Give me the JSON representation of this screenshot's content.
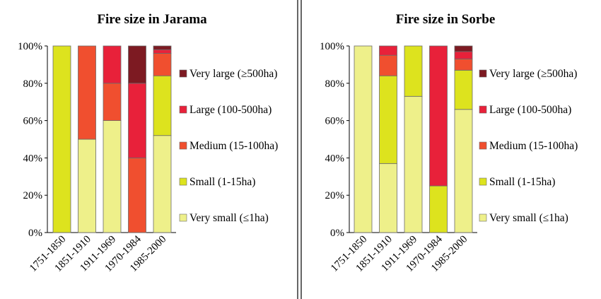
{
  "chart_data": [
    {
      "type": "bar",
      "stacked": true,
      "title": "Fire size in Jarama",
      "categories": [
        "1751-1850",
        "1851-1910",
        "1911-1969",
        "1970-1984",
        "1985-2000"
      ],
      "ylim": [
        0,
        100
      ],
      "yticks": [
        "0%",
        "20%",
        "40%",
        "60%",
        "80%",
        "100%"
      ],
      "legend_position": "right",
      "series": [
        {
          "name": "Very small (≤1ha)",
          "color": "#EEF08A",
          "values": [
            0,
            50,
            60,
            0,
            52
          ]
        },
        {
          "name": "Small (1-15ha)",
          "color": "#DDE31E",
          "values": [
            100,
            0,
            0,
            0,
            32
          ]
        },
        {
          "name": "Medium (15-100ha)",
          "color": "#F04F2F",
          "values": [
            0,
            50,
            20,
            40,
            12
          ]
        },
        {
          "name": "Large (100-500ha)",
          "color": "#E8213A",
          "values": [
            0,
            0,
            20,
            40,
            2
          ]
        },
        {
          "name": "Very large (≥500ha)",
          "color": "#7D1A22",
          "values": [
            0,
            0,
            0,
            20,
            2
          ]
        }
      ]
    },
    {
      "type": "bar",
      "stacked": true,
      "title": "Fire size in Sorbe",
      "categories": [
        "1751-1850",
        "1851-1910",
        "1911-1969",
        "1970-1984",
        "1985-2000"
      ],
      "ylim": [
        0,
        100
      ],
      "yticks": [
        "0%",
        "20%",
        "40%",
        "60%",
        "80%",
        "100%"
      ],
      "legend_position": "right",
      "series": [
        {
          "name": "Very small (≤1ha)",
          "color": "#EEF08A",
          "values": [
            100,
            37,
            73,
            0,
            66
          ]
        },
        {
          "name": "Small (1-15ha)",
          "color": "#DDE31E",
          "values": [
            0,
            47,
            27,
            25,
            21
          ]
        },
        {
          "name": "Medium (15-100ha)",
          "color": "#F04F2F",
          "values": [
            0,
            11,
            0,
            0,
            6
          ]
        },
        {
          "name": "Large (100-500ha)",
          "color": "#E8213A",
          "values": [
            0,
            5,
            0,
            75,
            4
          ]
        },
        {
          "name": "Very large (≥500ha)",
          "color": "#7D1A22",
          "values": [
            0,
            0,
            0,
            0,
            3
          ]
        }
      ]
    }
  ]
}
